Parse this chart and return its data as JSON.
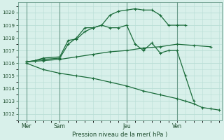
{
  "bg_color": "#d8f0ea",
  "grid_color": "#b8ddd5",
  "line_color": "#1a6b3a",
  "vline_color": "#6a9a8a",
  "ylim": [
    1011.5,
    1020.8
  ],
  "yticks": [
    1012,
    1013,
    1014,
    1015,
    1016,
    1017,
    1018,
    1019,
    1020
  ],
  "xlabel": "Pression niveau de la mer( hPa )",
  "day_labels": [
    "Mer",
    "Sam",
    "Jeu",
    "Ven"
  ],
  "day_positions": [
    0,
    24,
    72,
    108
  ],
  "xlim": [
    -4,
    140
  ],
  "series": [
    {
      "x": [
        0,
        6,
        12,
        24,
        30,
        36,
        42,
        48,
        54,
        60,
        66,
        72,
        78,
        84,
        90,
        96,
        102,
        108,
        114
      ],
      "y": [
        1016.1,
        1016.2,
        1016.4,
        1016.5,
        1017.8,
        1017.9,
        1018.5,
        1018.8,
        1019.0,
        1019.8,
        1020.1,
        1020.2,
        1020.3,
        1020.2,
        1020.2,
        1019.8,
        1019.0,
        1019.0,
        1019.0
      ],
      "marker": "+"
    },
    {
      "x": [
        0,
        6,
        12,
        24,
        30,
        36,
        42,
        48,
        54,
        60,
        66,
        72,
        78,
        84,
        90,
        96,
        102,
        108,
        114,
        120
      ],
      "y": [
        1016.1,
        1016.2,
        1016.3,
        1016.4,
        1017.5,
        1018.0,
        1018.8,
        1018.8,
        1019.0,
        1018.8,
        1018.8,
        1019.0,
        1017.5,
        1017.0,
        1017.6,
        1016.8,
        1017.0,
        1017.0,
        1015.0,
        1013.0
      ],
      "marker": "+"
    },
    {
      "x": [
        0,
        12,
        24,
        36,
        48,
        60,
        72,
        84,
        96,
        108,
        120,
        132
      ],
      "y": [
        1016.1,
        1016.2,
        1016.3,
        1016.5,
        1016.7,
        1016.9,
        1017.0,
        1017.2,
        1017.3,
        1017.5,
        1017.4,
        1017.3
      ],
      "marker": "+"
    },
    {
      "x": [
        0,
        12,
        24,
        36,
        48,
        60,
        72,
        84,
        96,
        108,
        114,
        120,
        126,
        132,
        138
      ],
      "y": [
        1016.0,
        1015.5,
        1015.2,
        1015.0,
        1014.8,
        1014.5,
        1014.2,
        1013.8,
        1013.5,
        1013.2,
        1013.0,
        1012.8,
        1012.5,
        1012.4,
        1012.3
      ],
      "marker": "+"
    }
  ]
}
